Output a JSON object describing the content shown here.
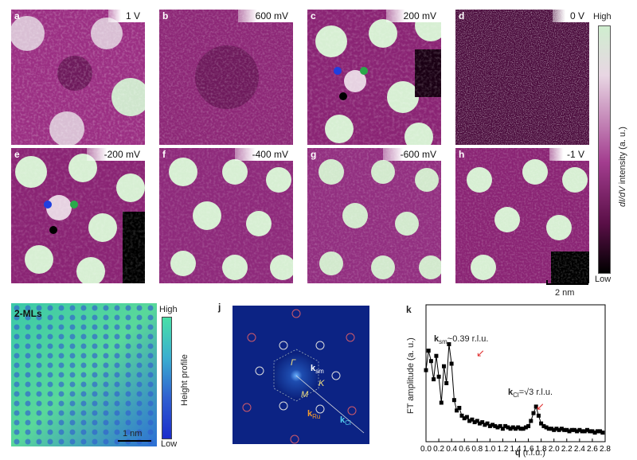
{
  "panels_top": [
    {
      "label": "a",
      "voltage": "1 V"
    },
    {
      "label": "b",
      "voltage": "600 mV"
    },
    {
      "label": "c",
      "voltage": "200 mV"
    },
    {
      "label": "d",
      "voltage": "0 V"
    }
  ],
  "panels_bottom": [
    {
      "label": "e",
      "voltage": "-200 mV"
    },
    {
      "label": "f",
      "voltage": "-400 mV"
    },
    {
      "label": "g",
      "voltage": "-600 mV"
    },
    {
      "label": "h",
      "voltage": "-1 V"
    }
  ],
  "colorbar": {
    "high": "High",
    "low": "Low",
    "title_italic": "dI/dV",
    "title_rest": " intensity (a. u.)"
  },
  "scalebar_top": "2 nm",
  "panel_i": {
    "label": "i",
    "tag": "2-MLs",
    "scalebar": "1 nm",
    "cbar_high": "High",
    "cbar_low": "Low",
    "cbar_title": "Height profile"
  },
  "panel_j": {
    "label": "j",
    "gamma": "Γ",
    "k": "K",
    "m": "M",
    "ksm": "k",
    "ksm_sub": "sm",
    "kru": "k",
    "kru_sub": "Ru",
    "kcl": "k",
    "kcl_sub": "Cl"
  },
  "panel_k": {
    "label": "k",
    "ylabel": "FT amplitude (a. u.)",
    "xlabel_bold": "q",
    "xlabel_rest": " (r.l.u.)",
    "ann1_k": "k",
    "ann1_sub": "sm",
    "ann1_rest": "~0.39 r.l.u.",
    "ann2_k": "k",
    "ann2_sub": "Cl",
    "ann2_rest": "=√3 r.l.u."
  },
  "chart_data": {
    "type": "scatter",
    "xlabel": "q (r.l.u.)",
    "ylabel": "FT amplitude (a. u.)",
    "xlim": [
      0,
      2.8
    ],
    "xticks": [
      "0.0",
      "0.2",
      "0.4",
      "0.6",
      "0.8",
      "1.0",
      "1.2",
      "1.4",
      "1.6",
      "1.8",
      "2.0",
      "2.2",
      "2.4",
      "2.6",
      "2.8"
    ],
    "x": [
      0.0,
      0.04,
      0.08,
      0.12,
      0.16,
      0.2,
      0.24,
      0.28,
      0.32,
      0.36,
      0.4,
      0.44,
      0.48,
      0.52,
      0.56,
      0.6,
      0.64,
      0.68,
      0.72,
      0.76,
      0.8,
      0.84,
      0.88,
      0.92,
      0.96,
      1.0,
      1.04,
      1.08,
      1.12,
      1.16,
      1.2,
      1.24,
      1.28,
      1.32,
      1.36,
      1.4,
      1.44,
      1.48,
      1.52,
      1.56,
      1.6,
      1.64,
      1.68,
      1.72,
      1.76,
      1.8,
      1.84,
      1.88,
      1.92,
      1.96,
      2.0,
      2.04,
      2.08,
      2.12,
      2.16,
      2.2,
      2.24,
      2.28,
      2.32,
      2.36,
      2.4,
      2.44,
      2.48,
      2.52,
      2.56,
      2.6,
      2.64,
      2.68,
      2.72,
      2.76
    ],
    "y": [
      0.55,
      0.7,
      0.62,
      0.48,
      0.66,
      0.5,
      0.3,
      0.58,
      0.45,
      0.75,
      0.6,
      0.32,
      0.24,
      0.26,
      0.2,
      0.18,
      0.19,
      0.16,
      0.17,
      0.15,
      0.16,
      0.14,
      0.15,
      0.13,
      0.14,
      0.12,
      0.13,
      0.12,
      0.11,
      0.12,
      0.1,
      0.12,
      0.11,
      0.1,
      0.11,
      0.1,
      0.11,
      0.1,
      0.1,
      0.11,
      0.12,
      0.16,
      0.22,
      0.27,
      0.2,
      0.14,
      0.12,
      0.11,
      0.1,
      0.1,
      0.09,
      0.1,
      0.09,
      0.1,
      0.09,
      0.09,
      0.08,
      0.09,
      0.09,
      0.08,
      0.09,
      0.08,
      0.08,
      0.09,
      0.08,
      0.08,
      0.07,
      0.08,
      0.08,
      0.07
    ]
  }
}
